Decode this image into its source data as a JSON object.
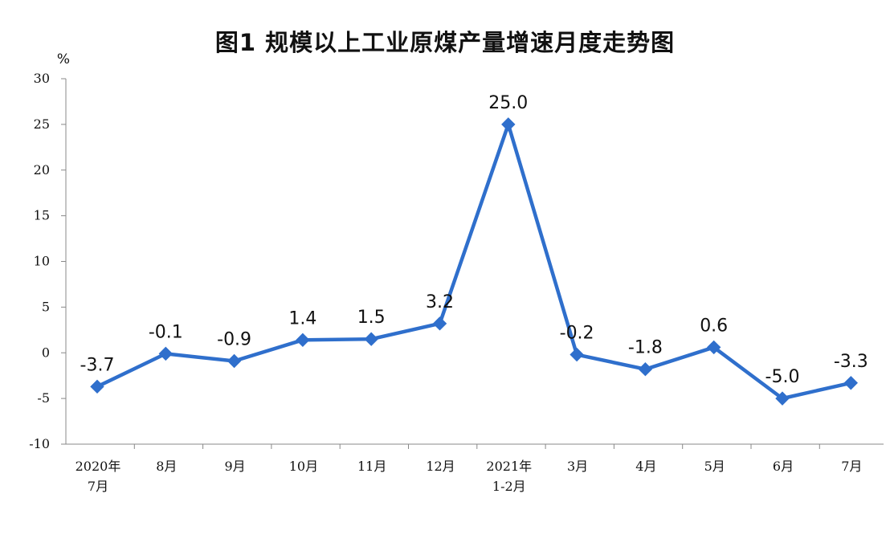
{
  "chart_data": {
    "type": "line",
    "title": "图1  规模以上工业原煤产量增速月度走势图",
    "ylabel": "%",
    "ylim": [
      -10,
      30
    ],
    "yticks": [
      30,
      25,
      20,
      15,
      10,
      5,
      0,
      -5,
      -10
    ],
    "categories": [
      [
        "2020年",
        "7月"
      ],
      [
        "8月"
      ],
      [
        "9月"
      ],
      [
        "10月"
      ],
      [
        "11月"
      ],
      [
        "12月"
      ],
      [
        "2021年",
        "1-2月"
      ],
      [
        "3月"
      ],
      [
        "4月"
      ],
      [
        "5月"
      ],
      [
        "6月"
      ],
      [
        "7月"
      ]
    ],
    "values": [
      -3.7,
      -0.1,
      -0.9,
      1.4,
      1.5,
      3.2,
      25.0,
      -0.2,
      -1.8,
      0.6,
      -5.0,
      -3.3
    ],
    "data_labels": [
      "-3.7",
      "-0.1",
      "-0.9",
      "1.4",
      "1.5",
      "3.2",
      "25.0",
      "-0.2",
      "-1.8",
      "0.6",
      "-5.0",
      "-3.3"
    ],
    "line_color": "#2f6fcc",
    "grid": false,
    "legend": "none"
  }
}
